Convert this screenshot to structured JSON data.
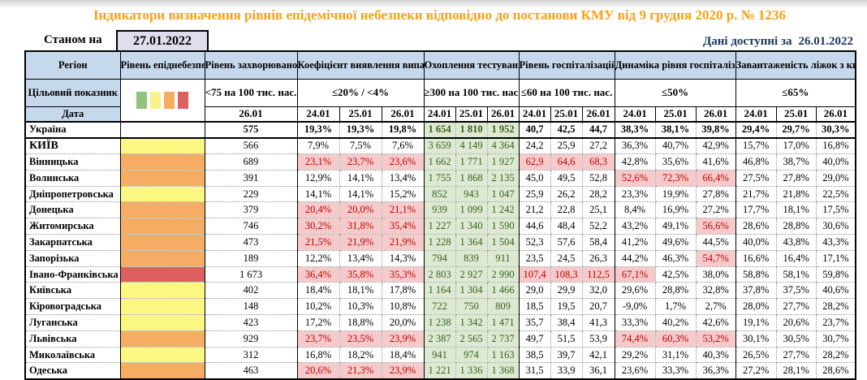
{
  "title": "Індикатори визначення рівнів епідемічної небезпеки відповідно до постанови КМУ від 9 грудня 2020 р. № 1236",
  "as_of_label": "Станом на",
  "as_of_date": "27.01.2022",
  "data_available_label": "Дані доступні за",
  "data_available_date": "26.01.2022",
  "columns": {
    "region": "Регіон",
    "epid": "Рівень епіднебезпеки",
    "incidence": "Рівень захворюваності",
    "detection": "Коефіцієнт виявлення випадків інфікування",
    "testing": "Охоплення тестуванням",
    "hosp": "Рівень госпіталізацій",
    "hosp_dyn": "Динаміка рівня госпіталізацій",
    "oxygen": "Завантаженість ліжок з киснем"
  },
  "target_label": "Цільовий показник",
  "date_label": "Дата",
  "thresholds": {
    "incidence": "<75 на 100 тис. нас.",
    "detection": "≤20% / <4%",
    "testing": "≥300 на 100 тис. нас.",
    "hosp": "≤60 на 100 тис. нас.",
    "hosp_dyn": "≤50%",
    "oxygen": "≤65%"
  },
  "incidence_date": "26.01",
  "dates": [
    "24.01",
    "25.01",
    "26.01"
  ],
  "legend_colors": [
    "#90C47E",
    "#F8F388",
    "#F5AD63",
    "#DD5F5F"
  ],
  "level_colors": {
    "none": "#FFFFFF",
    "yellow": "#FAF881",
    "orange": "#F5AD63",
    "red": "#DD5F5F"
  },
  "rows": [
    {
      "name": "Україна",
      "level": "none",
      "total": true,
      "incidence": "575",
      "detection": [
        "19,3%",
        "19,3%",
        "19,8%"
      ],
      "detection_red": [
        false,
        false,
        false
      ],
      "testing": [
        "1 654",
        "1 810",
        "1 952"
      ],
      "hosp": [
        "40,7",
        "42,5",
        "44,7"
      ],
      "hosp_red": [
        false,
        false,
        false
      ],
      "dyn": [
        "38,3%",
        "38,1%",
        "39,8%"
      ],
      "dyn_red": [
        false,
        false,
        false
      ],
      "oxygen": [
        "29,4%",
        "29,7%",
        "30,3%"
      ]
    },
    {
      "name": "КИЇВ",
      "level": "yellow",
      "caps": true,
      "incidence": "566",
      "detection": [
        "7,9%",
        "7,5%",
        "7,6%"
      ],
      "detection_red": [
        false,
        false,
        false
      ],
      "testing": [
        "3 659",
        "4 149",
        "4 364"
      ],
      "hosp": [
        "24,2",
        "25,9",
        "27,2"
      ],
      "hosp_red": [
        false,
        false,
        false
      ],
      "dyn": [
        "36,3%",
        "40,7%",
        "42,9%"
      ],
      "dyn_red": [
        false,
        false,
        false
      ],
      "oxygen": [
        "15,7%",
        "17,0%",
        "16,8%"
      ]
    },
    {
      "name": "Вінницька",
      "level": "orange",
      "incidence": "689",
      "detection": [
        "23,1%",
        "23,7%",
        "23,6%"
      ],
      "detection_red": [
        true,
        true,
        true
      ],
      "testing": [
        "1 662",
        "1 771",
        "1 927"
      ],
      "hosp": [
        "62,9",
        "64,6",
        "68,3"
      ],
      "hosp_red": [
        true,
        true,
        true
      ],
      "dyn": [
        "42,8%",
        "35,6%",
        "41,6%"
      ],
      "dyn_red": [
        false,
        false,
        false
      ],
      "oxygen": [
        "46,8%",
        "38,7%",
        "40,0%"
      ]
    },
    {
      "name": "Волинська",
      "level": "orange",
      "incidence": "391",
      "detection": [
        "12,9%",
        "14,1%",
        "13,4%"
      ],
      "detection_red": [
        false,
        false,
        false
      ],
      "testing": [
        "1 755",
        "1 868",
        "2 135"
      ],
      "hosp": [
        "45,0",
        "49,5",
        "52,8"
      ],
      "hosp_red": [
        false,
        false,
        false
      ],
      "dyn": [
        "52,6%",
        "72,3%",
        "66,4%"
      ],
      "dyn_red": [
        true,
        true,
        true
      ],
      "oxygen": [
        "27,5%",
        "27,8%",
        "29,0%"
      ]
    },
    {
      "name": "Дніпропетровська",
      "level": "yellow",
      "incidence": "229",
      "detection": [
        "14,1%",
        "14,1%",
        "15,2%"
      ],
      "detection_red": [
        false,
        false,
        false
      ],
      "testing": [
        "852",
        "943",
        "1 047"
      ],
      "hosp": [
        "25,9",
        "26,2",
        "28,2"
      ],
      "hosp_red": [
        false,
        false,
        false
      ],
      "dyn": [
        "23,3%",
        "19,9%",
        "27,8%"
      ],
      "dyn_red": [
        false,
        false,
        false
      ],
      "oxygen": [
        "21,7%",
        "21,8%",
        "22,5%"
      ]
    },
    {
      "name": "Донецька",
      "level": "orange",
      "incidence": "379",
      "detection": [
        "20,4%",
        "20,0%",
        "21,1%"
      ],
      "detection_red": [
        true,
        true,
        true
      ],
      "testing": [
        "939",
        "1 099",
        "1 242"
      ],
      "hosp": [
        "21,2",
        "22,8",
        "25,1"
      ],
      "hosp_red": [
        false,
        false,
        false
      ],
      "dyn": [
        "8,4%",
        "16,9%",
        "27,2%"
      ],
      "dyn_red": [
        false,
        false,
        false
      ],
      "oxygen": [
        "17,7%",
        "18,1%",
        "17,5%"
      ]
    },
    {
      "name": "Житомирська",
      "level": "orange",
      "incidence": "746",
      "detection": [
        "30,2%",
        "31,8%",
        "35,4%"
      ],
      "detection_red": [
        true,
        true,
        true
      ],
      "testing": [
        "1 227",
        "1 340",
        "1 590"
      ],
      "hosp": [
        "44,6",
        "48,4",
        "52,2"
      ],
      "hosp_red": [
        false,
        false,
        false
      ],
      "dyn": [
        "43,2%",
        "49,1%",
        "56,6%"
      ],
      "dyn_red": [
        false,
        false,
        true
      ],
      "oxygen": [
        "28,6%",
        "28,8%",
        "30,6%"
      ]
    },
    {
      "name": "Закарпатська",
      "level": "orange",
      "incidence": "473",
      "detection": [
        "21,5%",
        "21,9%",
        "21,9%"
      ],
      "detection_red": [
        true,
        true,
        true
      ],
      "testing": [
        "1 228",
        "1 364",
        "1 504"
      ],
      "hosp": [
        "52,3",
        "57,6",
        "58,4"
      ],
      "hosp_red": [
        false,
        false,
        false
      ],
      "dyn": [
        "41,2%",
        "49,6%",
        "44,5%"
      ],
      "dyn_red": [
        false,
        false,
        false
      ],
      "oxygen": [
        "40,0%",
        "43,8%",
        "43,3%"
      ]
    },
    {
      "name": "Запорізька",
      "level": "orange",
      "incidence": "189",
      "detection": [
        "12,2%",
        "13,4%",
        "14,3%"
      ],
      "detection_red": [
        false,
        false,
        false
      ],
      "testing": [
        "794",
        "839",
        "911"
      ],
      "hosp": [
        "23,5",
        "24,5",
        "26,3"
      ],
      "hosp_red": [
        false,
        false,
        false
      ],
      "dyn": [
        "44,2%",
        "46,3%",
        "54,7%"
      ],
      "dyn_red": [
        false,
        false,
        true
      ],
      "oxygen": [
        "16,6%",
        "16,4%",
        "17,1%"
      ]
    },
    {
      "name": "Івано-Франківська",
      "level": "red",
      "incidence": "1 673",
      "detection": [
        "36,4%",
        "35,8%",
        "35,3%"
      ],
      "detection_red": [
        true,
        true,
        true
      ],
      "testing": [
        "2 803",
        "2 927",
        "2 990"
      ],
      "hosp": [
        "107,4",
        "108,3",
        "112,5"
      ],
      "hosp_red": [
        true,
        true,
        true
      ],
      "dyn": [
        "67,1%",
        "42,5%",
        "38,0%"
      ],
      "dyn_red": [
        true,
        false,
        false
      ],
      "oxygen": [
        "58,8%",
        "58,1%",
        "59,8%"
      ]
    },
    {
      "name": "Київська",
      "level": "yellow",
      "incidence": "402",
      "detection": [
        "18,4%",
        "18,1%",
        "17,8%"
      ],
      "detection_red": [
        false,
        false,
        false
      ],
      "testing": [
        "1 164",
        "1 304",
        "1 466"
      ],
      "hosp": [
        "29,0",
        "29,9",
        "32,0"
      ],
      "hosp_red": [
        false,
        false,
        false
      ],
      "dyn": [
        "29,6%",
        "28,8%",
        "32,8%"
      ],
      "dyn_red": [
        false,
        false,
        false
      ],
      "oxygen": [
        "37,8%",
        "37,5%",
        "40,6%"
      ]
    },
    {
      "name": "Кіровоградська",
      "level": "yellow",
      "incidence": "148",
      "detection": [
        "10,2%",
        "10,3%",
        "10,8%"
      ],
      "detection_red": [
        false,
        false,
        false
      ],
      "testing": [
        "722",
        "750",
        "809"
      ],
      "hosp": [
        "18,5",
        "19,5",
        "20,7"
      ],
      "hosp_red": [
        false,
        false,
        false
      ],
      "dyn": [
        "-9,0%",
        "1,7%",
        "2,7%"
      ],
      "dyn_red": [
        false,
        false,
        false
      ],
      "oxygen": [
        "28,0%",
        "27,7%",
        "28,2%"
      ]
    },
    {
      "name": "Луганська",
      "level": "yellow",
      "incidence": "423",
      "detection": [
        "17,2%",
        "18,8%",
        "20,0%"
      ],
      "detection_red": [
        false,
        false,
        false
      ],
      "testing": [
        "1 238",
        "1 342",
        "1 471"
      ],
      "hosp": [
        "35,7",
        "38,4",
        "41,3"
      ],
      "hosp_red": [
        false,
        false,
        false
      ],
      "dyn": [
        "33,3%",
        "40,2%",
        "42,6%"
      ],
      "dyn_red": [
        false,
        false,
        false
      ],
      "oxygen": [
        "19,1%",
        "20,6%",
        "23,7%"
      ]
    },
    {
      "name": "Львівська",
      "level": "orange",
      "incidence": "929",
      "detection": [
        "23,7%",
        "23,5%",
        "23,9%"
      ],
      "detection_red": [
        true,
        true,
        true
      ],
      "testing": [
        "2 387",
        "2 565",
        "2 737"
      ],
      "hosp": [
        "49,7",
        "51,5",
        "53,9"
      ],
      "hosp_red": [
        false,
        false,
        false
      ],
      "dyn": [
        "74,4%",
        "60,3%",
        "53,2%"
      ],
      "dyn_red": [
        true,
        true,
        true
      ],
      "oxygen": [
        "30,1%",
        "30,5%",
        "30,7%"
      ]
    },
    {
      "name": "Миколаївська",
      "level": "yellow",
      "incidence": "312",
      "detection": [
        "16,8%",
        "18,2%",
        "18,4%"
      ],
      "detection_red": [
        false,
        false,
        false
      ],
      "testing": [
        "941",
        "974",
        "1 163"
      ],
      "hosp": [
        "38,5",
        "39,7",
        "42,1"
      ],
      "hosp_red": [
        false,
        false,
        false
      ],
      "dyn": [
        "29,2%",
        "31,1%",
        "40,3%"
      ],
      "dyn_red": [
        false,
        false,
        false
      ],
      "oxygen": [
        "26,5%",
        "27,7%",
        "28,2%"
      ]
    },
    {
      "name": "Одеська",
      "level": "orange",
      "incidence": "463",
      "detection": [
        "20,6%",
        "21,3%",
        "23,9%"
      ],
      "detection_red": [
        true,
        true,
        true
      ],
      "testing": [
        "1 221",
        "1 336",
        "1 368"
      ],
      "hosp": [
        "31,5",
        "33,9",
        "36,1"
      ],
      "hosp_red": [
        false,
        false,
        false
      ],
      "dyn": [
        "23,6%",
        "33,3%",
        "36,3%"
      ],
      "dyn_red": [
        false,
        false,
        false
      ],
      "oxygen": [
        "27,2%",
        "28,1%",
        "28,6%"
      ]
    }
  ]
}
